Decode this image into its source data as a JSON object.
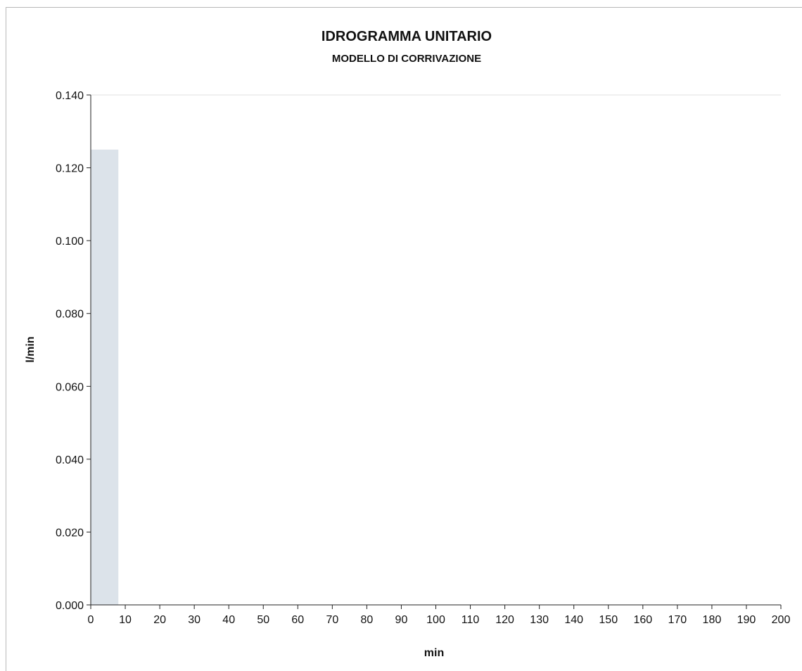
{
  "chart_data": {
    "type": "bar",
    "title": "IDROGRAMMA UNITARIO",
    "subtitle": "MODELLO DI CORRIVAZIONE",
    "xlabel": "min",
    "ylabel": "l/min",
    "xlim": [
      0,
      200
    ],
    "ylim": [
      0,
      0.14
    ],
    "x_ticks": [
      0,
      10,
      20,
      30,
      40,
      50,
      60,
      70,
      80,
      90,
      100,
      110,
      120,
      130,
      140,
      150,
      160,
      170,
      180,
      190,
      200
    ],
    "y_ticks": [
      "0.000",
      "0.020",
      "0.040",
      "0.060",
      "0.080",
      "0.100",
      "0.120",
      "0.140"
    ],
    "y_tick_values": [
      0,
      0.02,
      0.04,
      0.06,
      0.08,
      0.1,
      0.12,
      0.14
    ],
    "bars": [
      {
        "x_start": 0,
        "x_end": 8,
        "value": 0.125
      }
    ],
    "bar_color": "#dce3ea",
    "grid": false,
    "legend": "none"
  }
}
